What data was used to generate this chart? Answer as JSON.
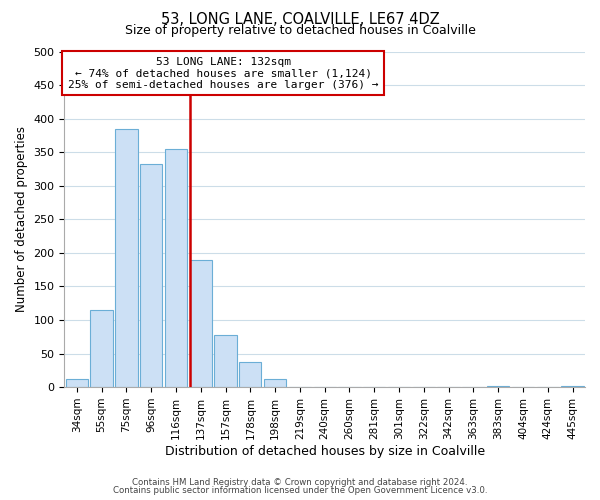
{
  "title": "53, LONG LANE, COALVILLE, LE67 4DZ",
  "subtitle": "Size of property relative to detached houses in Coalville",
  "xlabel": "Distribution of detached houses by size in Coalville",
  "ylabel": "Number of detached properties",
  "bar_labels": [
    "34sqm",
    "55sqm",
    "75sqm",
    "96sqm",
    "116sqm",
    "137sqm",
    "157sqm",
    "178sqm",
    "198sqm",
    "219sqm",
    "240sqm",
    "260sqm",
    "281sqm",
    "301sqm",
    "322sqm",
    "342sqm",
    "363sqm",
    "383sqm",
    "404sqm",
    "424sqm",
    "445sqm"
  ],
  "bar_values": [
    12,
    115,
    385,
    332,
    354,
    190,
    77,
    38,
    12,
    0,
    0,
    0,
    0,
    0,
    0,
    0,
    0,
    1,
    0,
    0,
    1
  ],
  "bar_color": "#cce0f5",
  "bar_edge_color": "#6baed6",
  "vline_label_idx": 5,
  "vline_color": "#cc0000",
  "annotation_title": "53 LONG LANE: 132sqm",
  "annotation_line1": "← 74% of detached houses are smaller (1,124)",
  "annotation_line2": "25% of semi-detached houses are larger (376) →",
  "annotation_box_color": "#ffffff",
  "annotation_box_edge": "#cc0000",
  "ylim": [
    0,
    500
  ],
  "yticks": [
    0,
    50,
    100,
    150,
    200,
    250,
    300,
    350,
    400,
    450,
    500
  ],
  "footer1": "Contains HM Land Registry data © Crown copyright and database right 2024.",
  "footer2": "Contains public sector information licensed under the Open Government Licence v3.0.",
  "bg_color": "#ffffff",
  "grid_color": "#ccdde8"
}
